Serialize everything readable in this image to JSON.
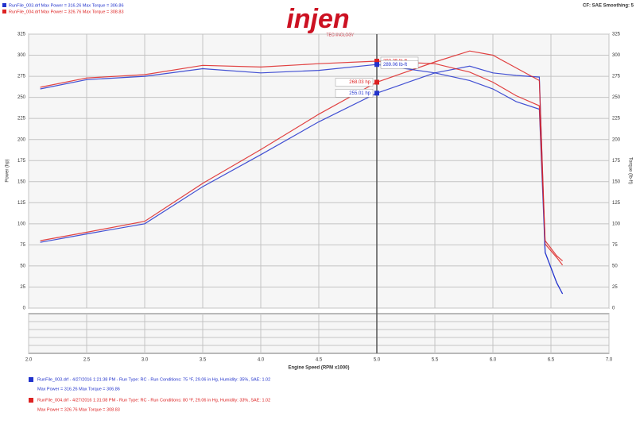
{
  "chart_data": {
    "type": "line",
    "logo": "injen",
    "logo_sub": "TECHNOLOGY",
    "settings_text": "CF: SAE Smoothing: 5",
    "x_label": "Engine Speed (RPM x1000)",
    "y_label": "Power (hp)",
    "y2_label": "Torque (lb-ft)",
    "runs": [
      {
        "label": "RunFile_003.drf  Max Power = 316.26  Max Torque = 306.86",
        "color": "#2233cc",
        "details": "RunFile_003.drf - 4/27/2016 1:21:38 PM - Run Type: RC - Run Conditions: 75 °F, 29.06 in Hg, Humidity: 35%, SAE: 1.02",
        "summary": "Max Power = 316.26  Max Torque = 306.86"
      },
      {
        "label": "RunFile_004.drf  Max Power = 326.76  Max Torque = 308.83",
        "color": "#dd2222",
        "details": "RunFile_004.drf - 4/27/2016 1:31:08 PM - Run Type: RC - Run Conditions: 80 °F, 29.06 in Hg, Humidity: 33%, SAE: 1.02",
        "summary": "Max Power = 326.76  Max Torque = 308.83"
      }
    ],
    "x": [
      2.1,
      2.5,
      3.0,
      3.5,
      4.0,
      4.5,
      5.0,
      5.5,
      5.8,
      6.0,
      6.2,
      6.4,
      6.45,
      6.55,
      6.6
    ],
    "series": [
      {
        "color": "#2233cc",
        "axis": "y",
        "values": [
          78,
          88,
          100,
          144,
          182,
          221,
          255,
          279,
          287,
          279,
          276,
          274,
          66,
          30,
          17
        ]
      },
      {
        "color": "#dd2222",
        "axis": "y",
        "values": [
          80,
          90,
          103,
          148,
          188,
          230,
          268,
          292,
          305,
          300,
          285,
          270,
          76,
          60,
          51
        ]
      },
      {
        "color": "#2233cc",
        "axis": "y2",
        "values": [
          260,
          271,
          275,
          284,
          279,
          282,
          289,
          279,
          270,
          260,
          245,
          236,
          66,
          30,
          17
        ]
      },
      {
        "color": "#dd2222",
        "axis": "y2",
        "values": [
          262,
          273,
          277,
          288,
          286,
          290,
          293,
          290,
          280,
          268,
          252,
          240,
          80,
          62,
          56
        ]
      }
    ],
    "cursor_x": 5.0,
    "annotations": [
      {
        "text": "293.35 lb-ft",
        "color": "#dd2222",
        "series": 3
      },
      {
        "text": "289.06 lb-ft",
        "color": "#2233cc",
        "series": 2
      },
      {
        "text": "268.03 hp",
        "color": "#dd2222",
        "series": 1
      },
      {
        "text": "255.01 hp",
        "color": "#2233cc",
        "series": 0
      }
    ],
    "xlim": [
      2.0,
      7.0
    ],
    "xticks": [
      {
        "value": 2,
        "label": "2.0"
      },
      2.5,
      {
        "value": 3,
        "label": "3.0"
      },
      3.5,
      {
        "value": 4,
        "label": "4.0"
      },
      4.5,
      {
        "value": 5,
        "label": "5.0"
      },
      5.5,
      {
        "value": 6,
        "label": "6.0"
      },
      6.5,
      {
        "value": 7,
        "label": "7.0"
      }
    ],
    "ylim": [
      0,
      325
    ],
    "yticks": [
      0,
      25,
      50,
      75,
      100,
      125,
      150,
      175,
      200,
      225,
      250,
      275,
      300,
      325
    ],
    "y2lim": [
      0,
      325
    ],
    "y2ticks": [
      0,
      25,
      50,
      75,
      100,
      125,
      150,
      175,
      200,
      225,
      250,
      275,
      300,
      325
    ],
    "grid": true
  }
}
